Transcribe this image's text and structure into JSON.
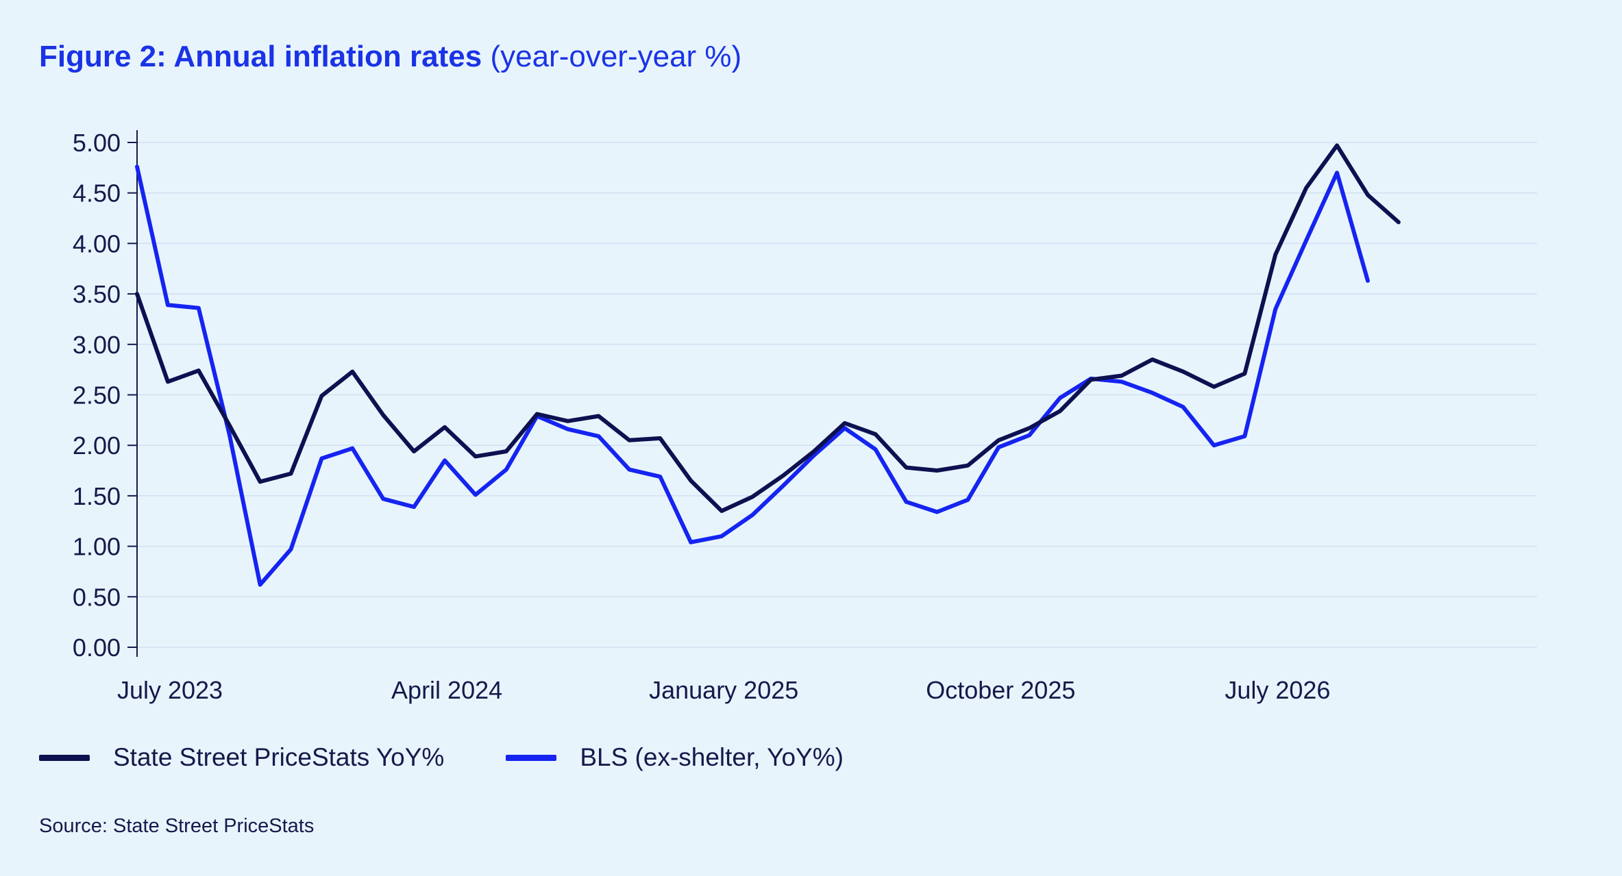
{
  "title": {
    "bold": "Figure 2: Annual inflation rates",
    "light": "(year-over-year %)"
  },
  "source": "Source: State Street PriceStats",
  "colors": {
    "background": "#e8f4fc",
    "title": "#1a33e6",
    "text": "#141a4a",
    "grid": "#cfe1f1",
    "axis": "#141a4a"
  },
  "chart_data": {
    "type": "line",
    "title": "Figure 2: Annual inflation rates (year-over-year %)",
    "xlabel": "",
    "ylabel": "",
    "ylim": [
      0,
      5
    ],
    "y_ticks": [
      "0.00",
      "0.50",
      "1.00",
      "1.50",
      "2.00",
      "2.50",
      "3.00",
      "3.50",
      "4.00",
      "4.50",
      "5.00"
    ],
    "x_ticks": [
      {
        "label": "July 2023",
        "index": 0
      },
      {
        "label": "April 2024",
        "index": 9
      },
      {
        "label": "January 2025",
        "index": 18
      },
      {
        "label": "October 2025",
        "index": 27
      },
      {
        "label": "July 2026",
        "index": 36
      }
    ],
    "grid": true,
    "legend": "bottom-left",
    "series": [
      {
        "name": "State Street PriceStats YoY%",
        "color": "#0d1150",
        "values": [
          3.5,
          2.63,
          2.74,
          2.2,
          1.64,
          1.72,
          2.49,
          2.73,
          2.3,
          1.94,
          2.18,
          1.89,
          1.94,
          2.31,
          2.24,
          2.29,
          2.05,
          2.07,
          1.65,
          1.35,
          1.49,
          1.7,
          1.94,
          2.22,
          2.11,
          1.78,
          1.75,
          1.8,
          2.05,
          2.17,
          2.34,
          2.65,
          2.69,
          2.85,
          2.73,
          2.58,
          2.71,
          3.89,
          4.55,
          4.97,
          4.48,
          4.21
        ]
      },
      {
        "name": "BLS (ex-shelter, YoY%)",
        "color": "#1524f0",
        "values": [
          4.76,
          3.39,
          3.36,
          2.11,
          0.62,
          0.97,
          1.87,
          1.97,
          1.47,
          1.39,
          1.85,
          1.51,
          1.76,
          2.29,
          2.16,
          2.09,
          1.76,
          1.69,
          1.04,
          1.1,
          1.31,
          1.6,
          1.9,
          2.17,
          1.96,
          1.44,
          1.34,
          1.46,
          1.98,
          2.1,
          2.47,
          2.66,
          2.63,
          2.52,
          2.38,
          2.0,
          2.09,
          3.35,
          4.03,
          4.7,
          3.63
        ]
      }
    ]
  }
}
